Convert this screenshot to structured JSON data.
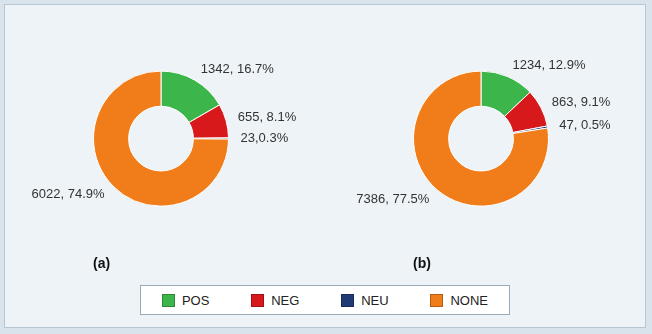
{
  "chart_data": [
    {
      "type": "doughnut",
      "title": "(a)",
      "categories": [
        "POS",
        "NEG",
        "NEU",
        "NONE"
      ],
      "values": [
        1342,
        655,
        23,
        6022
      ],
      "value_labels": [
        "1342, 16.7%",
        "655, 8.1%",
        "23,0.3%",
        "6022, 74.9%"
      ],
      "colors": [
        "#3cb54a",
        "#d7191c",
        "#1f3b73",
        "#f07d1a"
      ],
      "data_labels": true,
      "legend": "bottom"
    },
    {
      "type": "doughnut",
      "title": "(b)",
      "categories": [
        "POS",
        "NEG",
        "NEU",
        "NONE"
      ],
      "values": [
        1234,
        863,
        47,
        7386
      ],
      "value_labels": [
        "1234, 12.9%",
        "863, 9.1%",
        "47, 0.5%",
        "7386, 77.5%"
      ],
      "colors": [
        "#3cb54a",
        "#d7191c",
        "#1f3b73",
        "#f07d1a"
      ],
      "data_labels": true,
      "legend": "bottom"
    }
  ]
}
